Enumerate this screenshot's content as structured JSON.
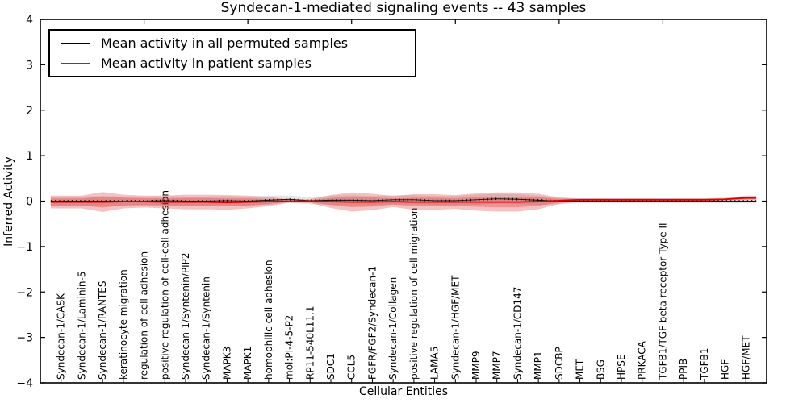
{
  "page": {
    "background": "#ffffff"
  },
  "chart_data": {
    "type": "area",
    "title": "Syndecan-1-mediated signaling events -- 43 samples",
    "xlabel": "Cellular Entities",
    "ylabel": "Inferred Activity",
    "xlim": [
      0,
      35
    ],
    "ylim": [
      -4,
      4
    ],
    "grid": false,
    "legend_position": "upper left",
    "yticks": [
      {
        "v": 4,
        "label": "4"
      },
      {
        "v": 3,
        "label": "3"
      },
      {
        "v": 2,
        "label": "2"
      },
      {
        "v": 1,
        "label": "1"
      },
      {
        "v": 0,
        "label": "0"
      },
      {
        "v": -1,
        "label": "−1"
      },
      {
        "v": -2,
        "label": "−2"
      },
      {
        "v": -3,
        "label": "−3"
      },
      {
        "v": -4,
        "label": "−4"
      }
    ],
    "top_xticks": [
      5,
      10,
      15,
      20,
      25,
      30
    ],
    "legend": [
      {
        "label": "Mean activity in all permuted samples",
        "color": "#000000"
      },
      {
        "label": "Mean activity in patient samples",
        "color": "#ff0000"
      }
    ],
    "colors": {
      "patient_fill": "#e02020",
      "patient_line": "#dd0000",
      "permuted_line": "#000000",
      "permuted_fill": "#000000",
      "frame": "#000000",
      "background": "#ffffff"
    },
    "entities": [
      {
        "name": "Syndecan-1/CASK",
        "patient_mean": -0.02,
        "patient_spread": 0.14,
        "permuted_mean": 0.0,
        "permuted_spread": 0.1
      },
      {
        "name": "Syndecan-1/Laminin-5",
        "patient_mean": -0.02,
        "patient_spread": 0.14,
        "permuted_mean": 0.0,
        "permuted_spread": 0.1
      },
      {
        "name": "Syndecan-1/RANTES",
        "patient_mean": -0.02,
        "patient_spread": 0.22,
        "permuted_mean": 0.0,
        "permuted_spread": 0.11
      },
      {
        "name": "keratinocyte migration",
        "patient_mean": -0.01,
        "patient_spread": 0.15,
        "permuted_mean": 0.0,
        "permuted_spread": 0.1
      },
      {
        "name": "regulation of cell adhesion",
        "patient_mean": -0.01,
        "patient_spread": 0.13,
        "permuted_mean": 0.0,
        "permuted_spread": 0.1
      },
      {
        "name": "positive regulation of cell-cell adhesion",
        "patient_mean": -0.02,
        "patient_spread": 0.14,
        "permuted_mean": 0.01,
        "permuted_spread": 0.1
      },
      {
        "name": "Syndecan-1/Syntenin/PIP2",
        "patient_mean": -0.02,
        "patient_spread": 0.16,
        "permuted_mean": 0.0,
        "permuted_spread": 0.1
      },
      {
        "name": "Syndecan-1/Syntenin",
        "patient_mean": -0.02,
        "patient_spread": 0.16,
        "permuted_mean": 0.0,
        "permuted_spread": 0.1
      },
      {
        "name": "MAPK3",
        "patient_mean": -0.03,
        "patient_spread": 0.16,
        "permuted_mean": 0.01,
        "permuted_spread": 0.1
      },
      {
        "name": "MAPK1",
        "patient_mean": -0.02,
        "patient_spread": 0.14,
        "permuted_mean": 0.0,
        "permuted_spread": 0.1
      },
      {
        "name": "homophilic cell adhesion",
        "patient_mean": -0.01,
        "patient_spread": 0.1,
        "permuted_mean": 0.02,
        "permuted_spread": 0.1
      },
      {
        "name": "mol:PI-4-5-P2",
        "patient_mean": 0.0,
        "patient_spread": 0.03,
        "permuted_mean": 0.04,
        "permuted_spread": 0.08
      },
      {
        "name": "RP11-540L11.1",
        "patient_mean": 0.0,
        "patient_spread": 0.04,
        "permuted_mean": 0.01,
        "permuted_spread": 0.08
      },
      {
        "name": "SDC1",
        "patient_mean": -0.01,
        "patient_spread": 0.14,
        "permuted_mean": 0.02,
        "permuted_spread": 0.1
      },
      {
        "name": "CCL5",
        "patient_mean": -0.02,
        "patient_spread": 0.21,
        "permuted_mean": 0.02,
        "permuted_spread": 0.11
      },
      {
        "name": "FGFR/FGF2/Syndecan-1",
        "patient_mean": -0.02,
        "patient_spread": 0.18,
        "permuted_mean": 0.01,
        "permuted_spread": 0.1
      },
      {
        "name": "Syndecan-1/Collagen",
        "patient_mean": -0.01,
        "patient_spread": 0.12,
        "permuted_mean": 0.03,
        "permuted_spread": 0.1
      },
      {
        "name": "positive regulation of cell migration",
        "patient_mean": -0.02,
        "patient_spread": 0.17,
        "permuted_mean": 0.03,
        "permuted_spread": 0.1
      },
      {
        "name": "LAMA5",
        "patient_mean": -0.02,
        "patient_spread": 0.17,
        "permuted_mean": 0.01,
        "permuted_spread": 0.1
      },
      {
        "name": "Syndecan-1/HGF/MET",
        "patient_mean": -0.02,
        "patient_spread": 0.15,
        "permuted_mean": 0.01,
        "permuted_spread": 0.1
      },
      {
        "name": "MMP9",
        "patient_mean": -0.02,
        "patient_spread": 0.19,
        "permuted_mean": 0.03,
        "permuted_spread": 0.11
      },
      {
        "name": "MMP7",
        "patient_mean": -0.02,
        "patient_spread": 0.21,
        "permuted_mean": 0.05,
        "permuted_spread": 0.11
      },
      {
        "name": "Syndecan-1/CD147",
        "patient_mean": -0.02,
        "patient_spread": 0.21,
        "permuted_mean": 0.04,
        "permuted_spread": 0.11
      },
      {
        "name": "MMP1",
        "patient_mean": -0.01,
        "patient_spread": 0.17,
        "permuted_mean": 0.02,
        "permuted_spread": 0.1
      },
      {
        "name": "SDCBP",
        "patient_mean": 0.01,
        "patient_spread": 0.07,
        "permuted_mean": 0.0,
        "permuted_spread": 0.07
      },
      {
        "name": "MET",
        "patient_mean": 0.03,
        "patient_spread": 0.03,
        "permuted_mean": 0.0,
        "permuted_spread": 0.05
      },
      {
        "name": "BSG",
        "patient_mean": 0.03,
        "patient_spread": 0.03,
        "permuted_mean": 0.0,
        "permuted_spread": 0.05
      },
      {
        "name": "HPSE",
        "patient_mean": 0.03,
        "patient_spread": 0.03,
        "permuted_mean": 0.0,
        "permuted_spread": 0.05
      },
      {
        "name": "PRKACA",
        "patient_mean": 0.03,
        "patient_spread": 0.03,
        "permuted_mean": 0.0,
        "permuted_spread": 0.05
      },
      {
        "name": "TGFB1/TGF beta receptor Type II",
        "patient_mean": 0.03,
        "patient_spread": 0.03,
        "permuted_mean": 0.0,
        "permuted_spread": 0.05
      },
      {
        "name": "PPIB",
        "patient_mean": 0.03,
        "patient_spread": 0.03,
        "permuted_mean": 0.0,
        "permuted_spread": 0.05
      },
      {
        "name": "TGFB1",
        "patient_mean": 0.03,
        "patient_spread": 0.03,
        "permuted_mean": 0.0,
        "permuted_spread": 0.05
      },
      {
        "name": "HGF",
        "patient_mean": 0.04,
        "patient_spread": 0.03,
        "permuted_mean": 0.0,
        "permuted_spread": 0.05
      },
      {
        "name": "HGF/MET",
        "patient_mean": 0.07,
        "patient_spread": 0.05,
        "permuted_mean": 0.0,
        "permuted_spread": 0.05
      }
    ]
  }
}
